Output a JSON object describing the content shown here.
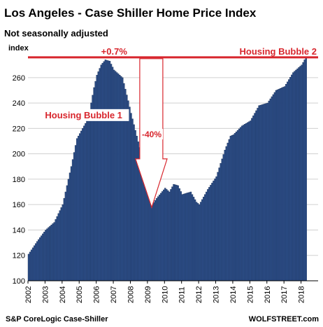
{
  "chart_data": {
    "type": "bar",
    "title": "Los Angeles - Case Shiller Home Price Index",
    "subtitle": "Not seasonally adjusted",
    "ylabel": "index",
    "ylim": [
      100,
      277
    ],
    "yticks": [
      100,
      120,
      140,
      160,
      180,
      200,
      220,
      240,
      260
    ],
    "xticks": [
      "2002",
      "2003",
      "2004",
      "2005",
      "2006",
      "2007",
      "2008",
      "2009",
      "2010",
      "2011",
      "2012",
      "2013",
      "2014",
      "2015",
      "2016",
      "2017",
      "2018"
    ],
    "x_start_year": 2002,
    "grid": true,
    "series_anchors": [
      [
        2002.0,
        121
      ],
      [
        2002.5,
        131
      ],
      [
        2003.0,
        140
      ],
      [
        2003.5,
        146
      ],
      [
        2004.0,
        160
      ],
      [
        2004.5,
        190
      ],
      [
        2004.83,
        212
      ],
      [
        2005.0,
        216
      ],
      [
        2005.5,
        228
      ],
      [
        2005.83,
        252
      ],
      [
        2006.0,
        262
      ],
      [
        2006.25,
        270
      ],
      [
        2006.5,
        274
      ],
      [
        2006.75,
        273
      ],
      [
        2007.0,
        266
      ],
      [
        2007.5,
        260
      ],
      [
        2007.83,
        242
      ],
      [
        2008.0,
        232
      ],
      [
        2008.5,
        205
      ],
      [
        2009.0,
        172
      ],
      [
        2009.25,
        160
      ],
      [
        2009.5,
        165
      ],
      [
        2010.0,
        173
      ],
      [
        2010.25,
        170
      ],
      [
        2010.5,
        176
      ],
      [
        2010.75,
        175
      ],
      [
        2011.0,
        168
      ],
      [
        2011.5,
        170
      ],
      [
        2011.83,
        162
      ],
      [
        2012.0,
        160
      ],
      [
        2012.5,
        172
      ],
      [
        2013.0,
        182
      ],
      [
        2013.5,
        203
      ],
      [
        2013.83,
        214
      ],
      [
        2014.0,
        215
      ],
      [
        2014.5,
        222
      ],
      [
        2015.0,
        226
      ],
      [
        2015.5,
        238
      ],
      [
        2016.0,
        240
      ],
      [
        2016.5,
        250
      ],
      [
        2017.0,
        253
      ],
      [
        2017.5,
        264
      ],
      [
        2018.0,
        270
      ],
      [
        2018.25,
        276
      ]
    ],
    "annotations": {
      "peak_label": "+0.7%",
      "bubble2_label": "Housing Bubble 2",
      "bubble1_label": "Housing Bubble 1",
      "drop_label": "-40%"
    },
    "source": "S&P CoreLogic Case-Shiller",
    "brand": "WOLFSTREET.com",
    "colors": {
      "bar": "#2d4f8a",
      "bar_edge": "#1a2f55",
      "accent": "#d8262d",
      "grid": "#d0d0d0"
    }
  }
}
